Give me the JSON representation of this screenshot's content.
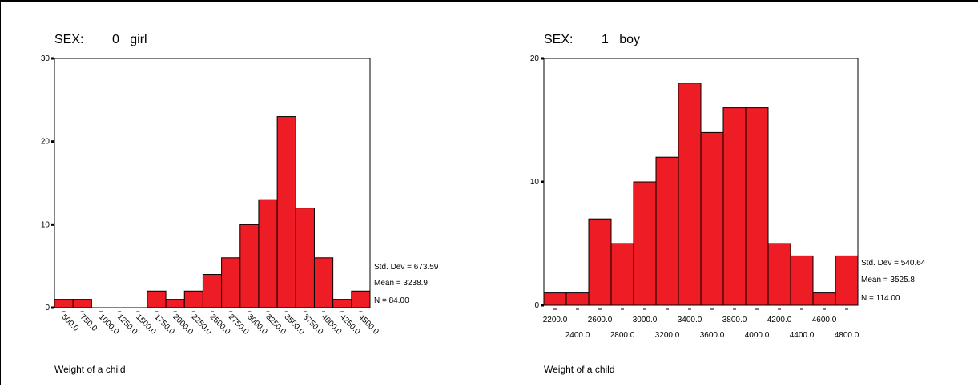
{
  "chart_data": [
    {
      "type": "bar",
      "title": "SEX:        0   girl",
      "xlabel": "Weight of a child",
      "ylabel": "",
      "categories": [
        "500.0",
        "750.0",
        "1000.0",
        "1250.0",
        "1500.0",
        "1750.0",
        "2000.0",
        "2250.0",
        "2500.0",
        "2750.0",
        "3000.0",
        "3250.0",
        "3500.0",
        "3750.0",
        "4000.0",
        "4250.0",
        "4500.0"
      ],
      "values": [
        1,
        1,
        0,
        0,
        0,
        2,
        1,
        2,
        4,
        6,
        10,
        13,
        23,
        12,
        6,
        1,
        2
      ],
      "ylim": [
        0,
        30
      ],
      "yticks": [
        0,
        10,
        20,
        30
      ],
      "stats": [
        "Std. Dev = 673.59",
        "Mean = 3238.9",
        "N = 84.00"
      ],
      "bar_color": "#ee1c25"
    },
    {
      "type": "bar",
      "title": "SEX:        1   boy",
      "xlabel": "Weight of a child",
      "ylabel": "",
      "categories": [
        "2200.0",
        "2400.0",
        "2600.0",
        "2800.0",
        "3000.0",
        "3200.0",
        "3400.0",
        "3600.0",
        "3800.0",
        "4000.0",
        "4200.0",
        "4400.0",
        "4600.0",
        "4800.0"
      ],
      "values": [
        1,
        1,
        7,
        5,
        10,
        12,
        18,
        14,
        16,
        16,
        5,
        4,
        1,
        4
      ],
      "ylim": [
        0,
        20
      ],
      "yticks": [
        0,
        10,
        20
      ],
      "stats": [
        "Std. Dev = 540.64",
        "Mean = 3525.8",
        "N = 114.00"
      ],
      "bar_color": "#ee1c25"
    }
  ]
}
